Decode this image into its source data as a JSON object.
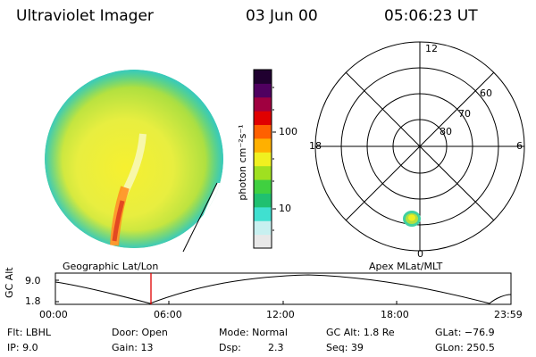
{
  "header": {
    "instrument": "Ultraviolet Imager",
    "date": "03 Jun 00",
    "time": "05:06:23 UT"
  },
  "left_panel": {
    "caption": "Geographic Lat/Lon"
  },
  "colorbar": {
    "unit_label": "photon cm⁻²s⁻¹",
    "ticks": [
      "100",
      "10"
    ],
    "colors": [
      "#e8e8e8",
      "#c8f0f0",
      "#40e0d0",
      "#20c070",
      "#40d040",
      "#a0e020",
      "#f0f020",
      "#ffb000",
      "#ff6000",
      "#e00000",
      "#a00040",
      "#500060",
      "#200030"
    ]
  },
  "right_panel": {
    "caption": "Apex MLat/MLT",
    "mlt_labels": {
      "top": "12",
      "left": "18",
      "right": "6",
      "bottom": "0"
    },
    "lat_labels": [
      "60",
      "70",
      "80"
    ]
  },
  "timeline": {
    "ylabel": "GC Alt",
    "y_ticks": [
      "9.0",
      "1.8"
    ],
    "x_ticks": [
      "00:00",
      "06:00",
      "12:00",
      "18:00",
      "23:59"
    ],
    "marker_color": "#e00000"
  },
  "info": {
    "flt": "Flt: LBHL",
    "ip": "IP:  9.0",
    "door": "Door: Open",
    "gain": "Gain: 13",
    "mode": "Mode: Normal",
    "dsp_label": "Dsp:",
    "dsp_value": "2.3",
    "gc_alt": "GC Alt: 1.8 Re",
    "seq": "Seq: 39",
    "glat": "GLat: −76.9",
    "glon": "GLon: 250.5"
  }
}
